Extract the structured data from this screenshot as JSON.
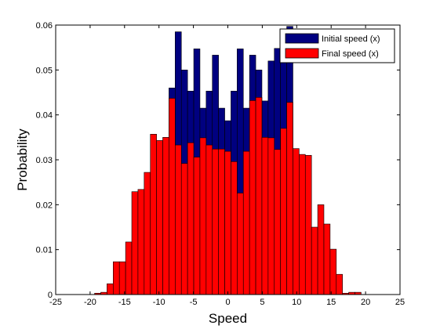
{
  "chart_data": {
    "type": "bar",
    "xlabel": "Speed",
    "ylabel": "Probability",
    "xlim": [
      -25,
      25
    ],
    "ylim": [
      0,
      0.06
    ],
    "xticks": [
      "-25",
      "-20",
      "-15",
      "-10",
      "-5",
      "0",
      "5",
      "10",
      "15",
      "20",
      "25"
    ],
    "yticks": [
      "0",
      "0.01",
      "0.02",
      "0.03",
      "0.04",
      "0.05",
      "0.06"
    ],
    "bin_width": 0.9,
    "grid": false,
    "legend_position": "top-right",
    "colors": {
      "initial": "#000080",
      "final": "#ff0000"
    },
    "series": [
      {
        "name": "Initial speed (x)",
        "x": [
          -8.1,
          -7.2,
          -6.3,
          -5.4,
          -4.5,
          -3.6,
          -2.7,
          -1.8,
          -0.9,
          0.0,
          0.9,
          1.8,
          2.7,
          3.6,
          4.5,
          5.4,
          6.3,
          7.2,
          8.1,
          9.0
        ],
        "values": [
          0.046,
          0.0585,
          0.05,
          0.0453,
          0.0547,
          0.0415,
          0.0453,
          0.0533,
          0.0415,
          0.0387,
          0.0453,
          0.0547,
          0.0415,
          0.0533,
          0.05,
          0.0431,
          0.052,
          0.0548,
          0.056,
          0.0597
        ]
      },
      {
        "name": "Final speed (x)",
        "x": [
          -18.9,
          -18.0,
          -17.1,
          -16.2,
          -15.3,
          -14.4,
          -13.5,
          -12.6,
          -11.7,
          -10.8,
          -9.9,
          -9.0,
          -8.1,
          -7.2,
          -6.3,
          -5.4,
          -4.5,
          -3.6,
          -2.7,
          -1.8,
          -0.9,
          0.0,
          0.9,
          1.8,
          2.7,
          3.6,
          4.5,
          5.4,
          6.3,
          7.2,
          8.1,
          9.0,
          9.9,
          10.8,
          11.7,
          12.6,
          13.5,
          14.4,
          15.3,
          16.2,
          17.1,
          18.0,
          18.9,
          19.8
        ],
        "values": [
          0.0003,
          0.0005,
          0.0024,
          0.0073,
          0.0073,
          0.0117,
          0.0229,
          0.0234,
          0.0272,
          0.0357,
          0.0343,
          0.035,
          0.0437,
          0.0333,
          0.0292,
          0.0338,
          0.0306,
          0.0349,
          0.0333,
          0.0324,
          0.0324,
          0.0319,
          0.0296,
          0.0226,
          0.0319,
          0.0432,
          0.0439,
          0.035,
          0.0349,
          0.0323,
          0.037,
          0.0428,
          0.0325,
          0.0312,
          0.031,
          0.015,
          0.02,
          0.0157,
          0.0101,
          0.0045,
          0.0003,
          0.0005,
          0.0005,
          0.0
        ]
      }
    ]
  }
}
